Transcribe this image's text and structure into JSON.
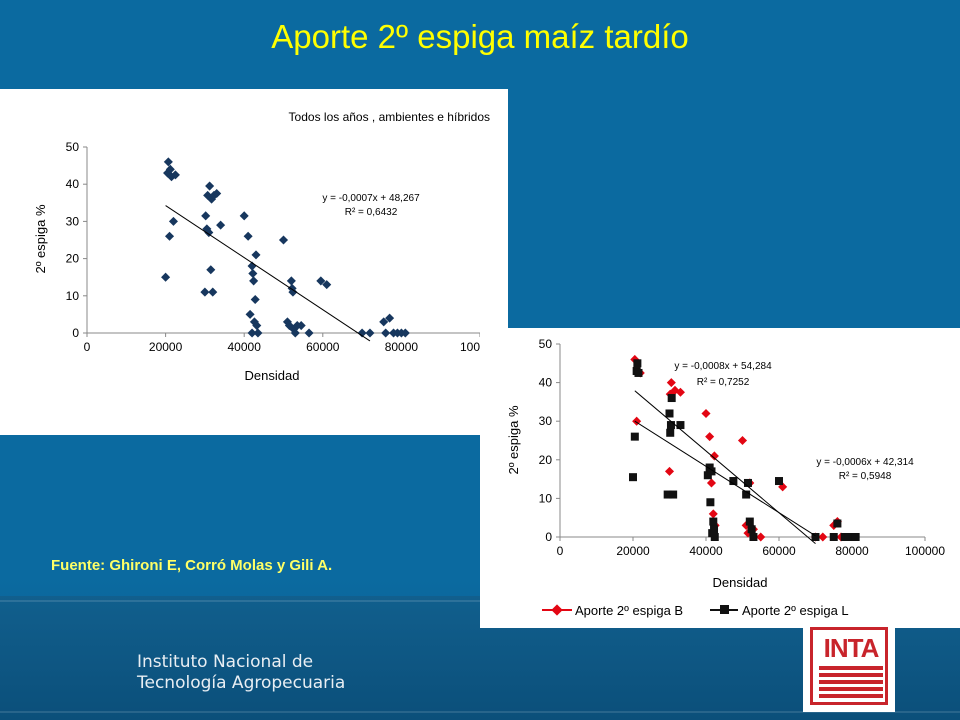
{
  "slide": {
    "title": "Aporte 2º espiga maíz tardío",
    "source": "Fuente: Ghironi E, Corró Molas y Gili A.",
    "institution_line1": "Instituto Nacional de",
    "institution_line2": "Tecnología Agropecuaria",
    "logo_text": "INTA",
    "colors": {
      "background": "#0b6aa0",
      "title": "#ffff00",
      "source": "#ffff66",
      "logo": "#c8242b"
    }
  },
  "chart_data": [
    {
      "type": "scatter",
      "title": "Todos los años , ambientes e híbridos",
      "xlabel": "Densidad",
      "ylabel": "2º espiga %",
      "xlim": [
        0,
        100000
      ],
      "ylim": [
        0,
        50
      ],
      "xticks": [
        "0",
        "20000",
        "40000",
        "60000",
        "80000",
        "100000"
      ],
      "yticks": [
        "0",
        "10",
        "20",
        "30",
        "40",
        "50"
      ],
      "grid": false,
      "legend": "none",
      "series": [
        {
          "marker": "diamond",
          "color": "#17375e",
          "points": [
            [
              20000,
              15
            ],
            [
              20500,
              43
            ],
            [
              20700,
              46
            ],
            [
              21000,
              26
            ],
            [
              21200,
              44
            ],
            [
              21500,
              42
            ],
            [
              22000,
              30
            ],
            [
              22500,
              42.5
            ],
            [
              30000,
              11
            ],
            [
              30200,
              31.5
            ],
            [
              30500,
              28
            ],
            [
              30700,
              37
            ],
            [
              31000,
              27
            ],
            [
              31200,
              39.5
            ],
            [
              31500,
              17
            ],
            [
              31700,
              36
            ],
            [
              32000,
              11
            ],
            [
              32300,
              37
            ],
            [
              33000,
              37.5
            ],
            [
              34000,
              29
            ],
            [
              40000,
              31.5
            ],
            [
              41000,
              26
            ],
            [
              41500,
              5
            ],
            [
              42000,
              18
            ],
            [
              42200,
              16
            ],
            [
              42400,
              14
            ],
            [
              42600,
              3
            ],
            [
              42800,
              9
            ],
            [
              43000,
              21
            ],
            [
              43200,
              2
            ],
            [
              43500,
              0
            ],
            [
              42000,
              0
            ],
            [
              50000,
              25
            ],
            [
              51000,
              3
            ],
            [
              51500,
              2
            ],
            [
              52000,
              14
            ],
            [
              52200,
              12
            ],
            [
              52400,
              11
            ],
            [
              52600,
              1
            ],
            [
              53000,
              0
            ],
            [
              53500,
              2
            ],
            [
              54500,
              2
            ],
            [
              56500,
              0
            ],
            [
              59500,
              14
            ],
            [
              61000,
              13
            ],
            [
              70000,
              0
            ],
            [
              72000,
              0
            ],
            [
              75500,
              3
            ],
            [
              76000,
              0
            ],
            [
              77000,
              4
            ],
            [
              78000,
              0
            ],
            [
              79000,
              0
            ],
            [
              80000,
              0
            ],
            [
              81000,
              0
            ]
          ]
        }
      ],
      "trendlines": [
        {
          "equation": "y = -0,0007x + 48,267",
          "r2": "R² = 0,6432",
          "slope": -0.0007,
          "intercept": 48.267,
          "x_range": [
            20000,
            72000
          ]
        }
      ]
    },
    {
      "type": "scatter",
      "title": "",
      "xlabel": "Densidad",
      "ylabel": "2º espiga %",
      "xlim": [
        0,
        100000
      ],
      "ylim": [
        0,
        50
      ],
      "xticks": [
        "0",
        "20000",
        "40000",
        "60000",
        "80000",
        "100000"
      ],
      "yticks": [
        "0",
        "10",
        "20",
        "30",
        "40",
        "50"
      ],
      "grid": false,
      "legend": "bottom",
      "series": [
        {
          "name": "Aporte 2º espiga B",
          "marker": "diamond",
          "color": "#e30613",
          "points": [
            [
              20500,
              46
            ],
            [
              21000,
              30
            ],
            [
              22000,
              42.5
            ],
            [
              30000,
              17
            ],
            [
              30200,
              37
            ],
            [
              30500,
              40
            ],
            [
              31500,
              38
            ],
            [
              33000,
              37.5
            ],
            [
              40000,
              32
            ],
            [
              41000,
              26
            ],
            [
              41500,
              14
            ],
            [
              42000,
              6
            ],
            [
              42300,
              21
            ],
            [
              42500,
              3
            ],
            [
              50000,
              25
            ],
            [
              51000,
              3
            ],
            [
              51500,
              1
            ],
            [
              52000,
              14
            ],
            [
              53000,
              2
            ],
            [
              55000,
              0
            ],
            [
              61000,
              13
            ],
            [
              70000,
              0
            ],
            [
              72000,
              0
            ],
            [
              75000,
              3
            ],
            [
              76000,
              4
            ],
            [
              77000,
              0
            ]
          ]
        },
        {
          "name": "Aporte 2º espiga L",
          "marker": "square",
          "color": "#111111",
          "points": [
            [
              20000,
              15.5
            ],
            [
              20500,
              26
            ],
            [
              21000,
              43
            ],
            [
              21200,
              45
            ],
            [
              21500,
              42.5
            ],
            [
              29500,
              11
            ],
            [
              30000,
              32
            ],
            [
              30200,
              27
            ],
            [
              30400,
              29
            ],
            [
              30600,
              36
            ],
            [
              31000,
              11
            ],
            [
              33000,
              29
            ],
            [
              40500,
              16
            ],
            [
              41000,
              18
            ],
            [
              41200,
              9
            ],
            [
              41500,
              17
            ],
            [
              41700,
              1
            ],
            [
              42000,
              4
            ],
            [
              42200,
              2
            ],
            [
              42400,
              0
            ],
            [
              51000,
              11
            ],
            [
              51500,
              14
            ],
            [
              52000,
              4
            ],
            [
              52500,
              2
            ],
            [
              53000,
              0
            ],
            [
              47500,
              14.5
            ],
            [
              60000,
              14.5
            ],
            [
              70000,
              0
            ],
            [
              75000,
              0
            ],
            [
              76000,
              3.5
            ],
            [
              78000,
              0
            ],
            [
              79000,
              0
            ],
            [
              81000,
              0
            ]
          ]
        }
      ],
      "trendlines": [
        {
          "equation": "y = -0,0008x + 54,284",
          "r2": "R² = 0,7252",
          "slope": -0.0008,
          "intercept": 54.284,
          "x_range": [
            20500,
            70000
          ]
        },
        {
          "equation": "y = -0,0006x + 42,314",
          "r2": "R² = 0,5948",
          "slope": -0.0006,
          "intercept": 42.314,
          "x_range": [
            20500,
            70000
          ]
        }
      ]
    }
  ]
}
